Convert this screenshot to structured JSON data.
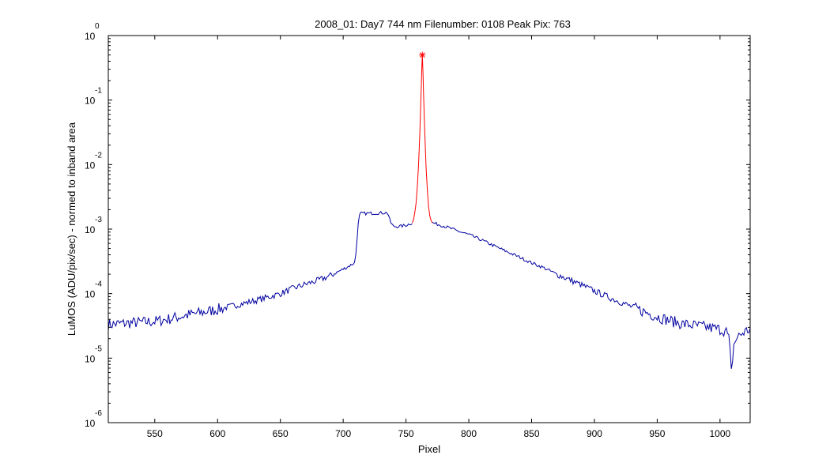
{
  "chart_data": {
    "type": "line",
    "title": "2008_01: Day7  744 nm  Filenumber: 0108 Peak Pix: 763",
    "xlabel": "Pixel",
    "ylabel": "LuMOS (ADU/pix/sec) - normed to inband area",
    "xlim": [
      513,
      1024
    ],
    "ylim": [
      1e-06,
      1
    ],
    "yscale": "log",
    "grid": false,
    "x_ticks": [
      550,
      600,
      650,
      700,
      750,
      800,
      850,
      900,
      950,
      1000
    ],
    "y_ticks": [
      {
        "value": 1e-06,
        "base": "10",
        "exponent": "-6"
      },
      {
        "value": 1e-05,
        "base": "10",
        "exponent": "-5"
      },
      {
        "value": 0.0001,
        "base": "10",
        "exponent": "-4"
      },
      {
        "value": 0.001,
        "base": "10",
        "exponent": "-3"
      },
      {
        "value": 0.01,
        "base": "10",
        "exponent": "-2"
      },
      {
        "value": 0.1,
        "base": "10",
        "exponent": "-1"
      },
      {
        "value": 1,
        "base": "10",
        "exponent": "0"
      }
    ],
    "colors": {
      "outband": "#0000a0",
      "inband": "#ff0000",
      "marker": "#ff0000",
      "axes": "#000000"
    },
    "series": [
      {
        "key": "outband_left",
        "color": "#0000a0",
        "points": [
          [
            513,
            3.3e-05
          ],
          [
            520,
            3.4e-05
          ],
          [
            530,
            3.5e-05
          ],
          [
            540,
            3.6e-05
          ],
          [
            550,
            3.7e-05
          ],
          [
            560,
            4e-05
          ],
          [
            570,
            4.4e-05
          ],
          [
            580,
            4.8e-05
          ],
          [
            590,
            5.2e-05
          ],
          [
            600,
            5.7e-05
          ],
          [
            610,
            6.3e-05
          ],
          [
            620,
            7e-05
          ],
          [
            630,
            7.8e-05
          ],
          [
            640,
            8.8e-05
          ],
          [
            650,
            0.0001
          ],
          [
            660,
            0.00012
          ],
          [
            670,
            0.00014
          ],
          [
            680,
            0.00016
          ],
          [
            690,
            0.00019
          ],
          [
            700,
            0.00024
          ],
          [
            705,
            0.00027
          ],
          [
            709,
            0.0003
          ],
          [
            710,
            0.0004
          ],
          [
            711,
            0.0007
          ],
          [
            712,
            0.0012
          ],
          [
            713,
            0.0016
          ],
          [
            714,
            0.00175
          ],
          [
            720,
            0.00175
          ],
          [
            725,
            0.00177
          ],
          [
            730,
            0.00178
          ],
          [
            735,
            0.0018
          ],
          [
            736,
            0.00165
          ],
          [
            737,
            0.0014
          ],
          [
            738,
            0.00125
          ],
          [
            740,
            0.0011
          ],
          [
            745,
            0.0011
          ],
          [
            750,
            0.00115
          ],
          [
            755,
            0.00125
          ]
        ]
      },
      {
        "key": "inband",
        "color": "#ff0000",
        "points": [
          [
            755,
            0.00125
          ],
          [
            756,
            0.0014
          ],
          [
            757,
            0.0018
          ],
          [
            758,
            0.0025
          ],
          [
            759,
            0.0045
          ],
          [
            760,
            0.01
          ],
          [
            761,
            0.03
          ],
          [
            762,
            0.12
          ],
          [
            762.5,
            0.28
          ],
          [
            763,
            0.5
          ],
          [
            763.5,
            0.28
          ],
          [
            764,
            0.12
          ],
          [
            765,
            0.03
          ],
          [
            766,
            0.009
          ],
          [
            767,
            0.004
          ],
          [
            768,
            0.0022
          ],
          [
            769,
            0.0016
          ],
          [
            770,
            0.00135
          ],
          [
            771,
            0.00125
          ]
        ]
      },
      {
        "key": "outband_right",
        "color": "#0000a0",
        "points": [
          [
            771,
            0.00125
          ],
          [
            780,
            0.00112
          ],
          [
            790,
            0.00095
          ],
          [
            800,
            0.00082
          ],
          [
            810,
            0.00068
          ],
          [
            820,
            0.00055
          ],
          [
            830,
            0.00045
          ],
          [
            840,
            0.00037
          ],
          [
            850,
            0.0003
          ],
          [
            860,
            0.00025
          ],
          [
            870,
            0.0002
          ],
          [
            880,
            0.000165
          ],
          [
            890,
            0.000135
          ],
          [
            900,
            0.00011
          ],
          [
            910,
            9e-05
          ],
          [
            920,
            7.5e-05
          ],
          [
            930,
            6.2e-05
          ],
          [
            940,
            5.2e-05
          ],
          [
            950,
            4.4e-05
          ],
          [
            960,
            3.8e-05
          ],
          [
            970,
            3.4e-05
          ],
          [
            980,
            3.2e-05
          ],
          [
            990,
            3e-05
          ],
          [
            1000,
            2.8e-05
          ],
          [
            1005,
            2.6e-05
          ],
          [
            1007,
            2e-05
          ],
          [
            1008,
            1.2e-05
          ],
          [
            1009,
            6e-06
          ],
          [
            1010,
            1e-05
          ],
          [
            1011,
            1.6e-05
          ],
          [
            1013,
            2e-05
          ],
          [
            1016,
            2.3e-05
          ],
          [
            1020,
            2.6e-05
          ],
          [
            1024,
            2.8e-05
          ]
        ]
      }
    ],
    "peak_marker": {
      "x": 763,
      "y": 0.5,
      "symbol": "*"
    }
  }
}
